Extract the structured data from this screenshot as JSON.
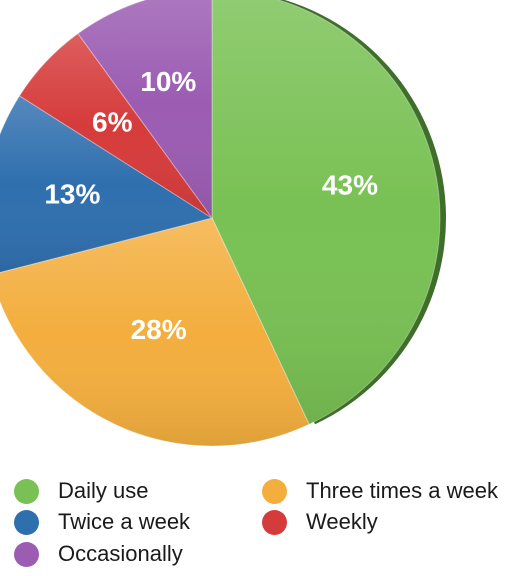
{
  "chart_data": {
    "type": "pie",
    "slices": [
      {
        "name": "Daily use",
        "value": 43,
        "label": "43%",
        "color": "#79c154"
      },
      {
        "name": "Three times a week",
        "value": 28,
        "label": "28%",
        "color": "#f3ae3e"
      },
      {
        "name": "Twice a week",
        "value": 13,
        "label": "13%",
        "color": "#2f6fae"
      },
      {
        "name": "Weekly",
        "value": 6,
        "label": "6%",
        "color": "#d63b3b"
      },
      {
        "name": "Occasionally",
        "value": 10,
        "label": "10%",
        "color": "#9b5cb2"
      }
    ],
    "legend_placement": "bottom",
    "legend": [
      {
        "label": "Daily use",
        "color": "#79c154"
      },
      {
        "label": "Three times a week",
        "color": "#f3ae3e"
      },
      {
        "label": "Twice a week",
        "color": "#2f6fae"
      },
      {
        "label": "Weekly",
        "color": "#d63b3b"
      },
      {
        "label": "Occasionally",
        "color": "#9b5cb2"
      }
    ]
  }
}
